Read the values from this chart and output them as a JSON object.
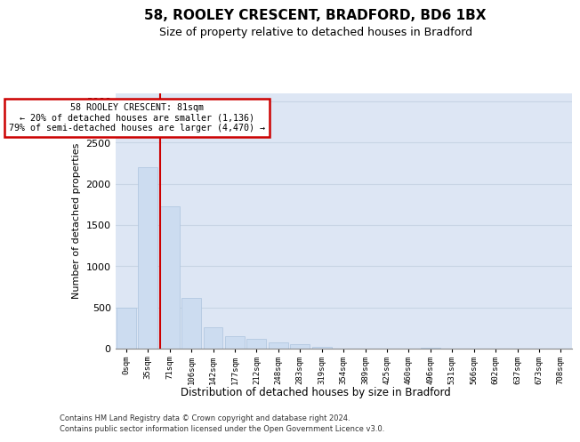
{
  "title_line1": "58, ROOLEY CRESCENT, BRADFORD, BD6 1BX",
  "title_line2": "Size of property relative to detached houses in Bradford",
  "xlabel": "Distribution of detached houses by size in Bradford",
  "ylabel": "Number of detached properties",
  "categories": [
    "0sqm",
    "35sqm",
    "71sqm",
    "106sqm",
    "142sqm",
    "177sqm",
    "212sqm",
    "248sqm",
    "283sqm",
    "319sqm",
    "354sqm",
    "389sqm",
    "425sqm",
    "460sqm",
    "496sqm",
    "531sqm",
    "566sqm",
    "602sqm",
    "637sqm",
    "673sqm",
    "708sqm"
  ],
  "values": [
    500,
    2200,
    1720,
    620,
    260,
    155,
    115,
    75,
    50,
    20,
    0,
    0,
    0,
    0,
    15,
    0,
    0,
    0,
    0,
    0,
    0
  ],
  "bar_color": "#ccdcf0",
  "bar_edge_color": "#adc4de",
  "grid_color": "#c8d4e4",
  "plot_bg_color": "#dde6f4",
  "vline_color": "#cc0000",
  "vline_x": 1.575,
  "annotation_text": "58 ROOLEY CRESCENT: 81sqm\n← 20% of detached houses are smaller (1,136)\n79% of semi-detached houses are larger (4,470) →",
  "ylim": [
    0,
    3100
  ],
  "yticks": [
    0,
    500,
    1000,
    1500,
    2000,
    2500,
    3000
  ],
  "footnote1": "Contains HM Land Registry data © Crown copyright and database right 2024.",
  "footnote2": "Contains public sector information licensed under the Open Government Licence v3.0."
}
